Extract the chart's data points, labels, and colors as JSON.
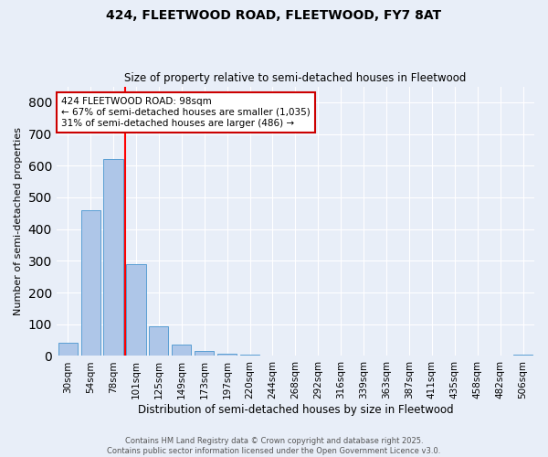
{
  "title1": "424, FLEETWOOD ROAD, FLEETWOOD, FY7 8AT",
  "title2": "Size of property relative to semi-detached houses in Fleetwood",
  "xlabel": "Distribution of semi-detached houses by size in Fleetwood",
  "ylabel": "Number of semi-detached properties",
  "bar_labels": [
    "30sqm",
    "54sqm",
    "78sqm",
    "101sqm",
    "125sqm",
    "149sqm",
    "173sqm",
    "197sqm",
    "220sqm",
    "244sqm",
    "268sqm",
    "292sqm",
    "316sqm",
    "339sqm",
    "363sqm",
    "387sqm",
    "411sqm",
    "435sqm",
    "458sqm",
    "482sqm",
    "506sqm"
  ],
  "bar_values": [
    42,
    460,
    620,
    290,
    93,
    35,
    15,
    8,
    5,
    2,
    0,
    0,
    0,
    0,
    0,
    0,
    0,
    0,
    0,
    0,
    5
  ],
  "bar_color": "#aec6e8",
  "bar_edge_color": "#5a9fd4",
  "background_color": "#e8eef8",
  "grid_color": "#ffffff",
  "annotation_text1": "424 FLEETWOOD ROAD: 98sqm",
  "annotation_text2": "← 67% of semi-detached houses are smaller (1,035)",
  "annotation_text3": "31% of semi-detached houses are larger (486) →",
  "annotation_box_color": "#ffffff",
  "annotation_box_edge": "#cc0000",
  "ylim": [
    0,
    850
  ],
  "yticks": [
    0,
    100,
    200,
    300,
    400,
    500,
    600,
    700,
    800
  ],
  "footer1": "Contains HM Land Registry data © Crown copyright and database right 2025.",
  "footer2": "Contains public sector information licensed under the Open Government Licence v3.0.",
  "fig_width": 6.0,
  "fig_height": 5.0,
  "dpi": 100
}
